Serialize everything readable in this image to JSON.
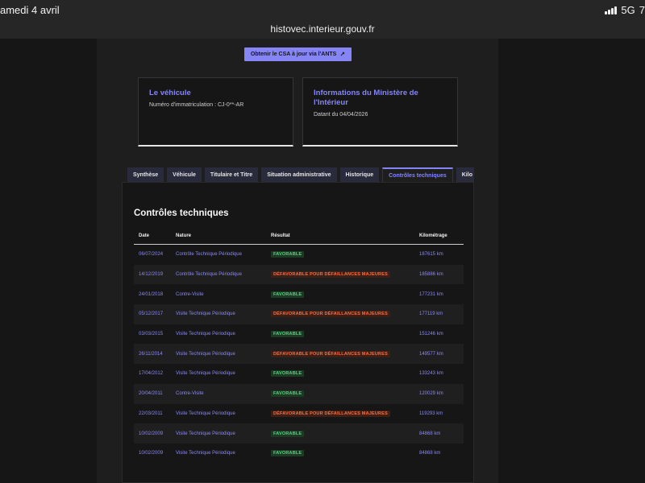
{
  "status_bar": {
    "time": "amedi 4 avril",
    "network": "5G",
    "battery": "7"
  },
  "browser": {
    "url": "histovec.interieur.gouv.fr"
  },
  "ants_button": {
    "label": "Obtenir le CSA à jour via l'ANTS",
    "icon": "external-link-icon"
  },
  "cards": {
    "vehicule": {
      "title": "Le véhicule",
      "text": "Numéro d'immatriculation : CJ-0**-AR"
    },
    "ministere": {
      "title": "Informations du Ministère de l'Intérieur",
      "text": "Datant du 04/04/2026"
    }
  },
  "tabs": [
    {
      "label": "Synthèse",
      "active": false
    },
    {
      "label": "Véhicule",
      "active": false
    },
    {
      "label": "Titulaire et Titre",
      "active": false
    },
    {
      "label": "Situation administrative",
      "active": false
    },
    {
      "label": "Historique",
      "active": false
    },
    {
      "label": "Contrôles techniques",
      "active": true
    },
    {
      "label": "Kilo",
      "active": false
    }
  ],
  "controls": {
    "title": "Contrôles techniques",
    "headers": {
      "date": "Date",
      "nature": "Nature",
      "result": "Résultat",
      "km": "Kilométrage"
    },
    "rows": [
      {
        "date": "06/07/2024",
        "nature": "Contrôle Technique Périodique",
        "result": "FAVORABLE",
        "status": "ok",
        "km": "187615 km"
      },
      {
        "date": "14/12/2019",
        "nature": "Contrôle Technique Périodique",
        "result": "DÉFAVORABLE POUR DÉFAILLANCES MAJEURES",
        "status": "ko",
        "km": "185886 km"
      },
      {
        "date": "24/01/2018",
        "nature": "Contre-Visite",
        "result": "FAVORABLE",
        "status": "ok",
        "km": "177231 km"
      },
      {
        "date": "05/12/2017",
        "nature": "Visite Technique Périodique",
        "result": "DÉFAVORABLE POUR DÉFAILLANCES MAJEURES",
        "status": "ko",
        "km": "177119 km"
      },
      {
        "date": "03/03/2015",
        "nature": "Visite Technique Périodique",
        "result": "FAVORABLE",
        "status": "ok",
        "km": "151246 km"
      },
      {
        "date": "26/11/2014",
        "nature": "Visite Technique Périodique",
        "result": "DÉFAVORABLE POUR DÉFAILLANCES MAJEURES",
        "status": "ko",
        "km": "149577 km"
      },
      {
        "date": "17/04/2012",
        "nature": "Visite Technique Périodique",
        "result": "FAVORABLE",
        "status": "ok",
        "km": "133243 km"
      },
      {
        "date": "20/04/2011",
        "nature": "Contre-Visite",
        "result": "FAVORABLE",
        "status": "ok",
        "km": "120029 km"
      },
      {
        "date": "22/03/2011",
        "nature": "Visite Technique Périodique",
        "result": "DÉFAVORABLE POUR DÉFAILLANCES MAJEURES",
        "status": "ko",
        "km": "119293 km"
      },
      {
        "date": "10/02/2009",
        "nature": "Visite Technique Périodique",
        "result": "FAVORABLE",
        "status": "ok",
        "km": "84868 km"
      },
      {
        "date": "10/02/2009",
        "nature": "Visite Technique Périodique",
        "result": "FAVORABLE",
        "status": "ok",
        "km": "84868 km"
      }
    ]
  },
  "colors": {
    "accent": "#8585f6",
    "favorable": "#4fd47a",
    "defavorable": "#ff6b3d"
  }
}
